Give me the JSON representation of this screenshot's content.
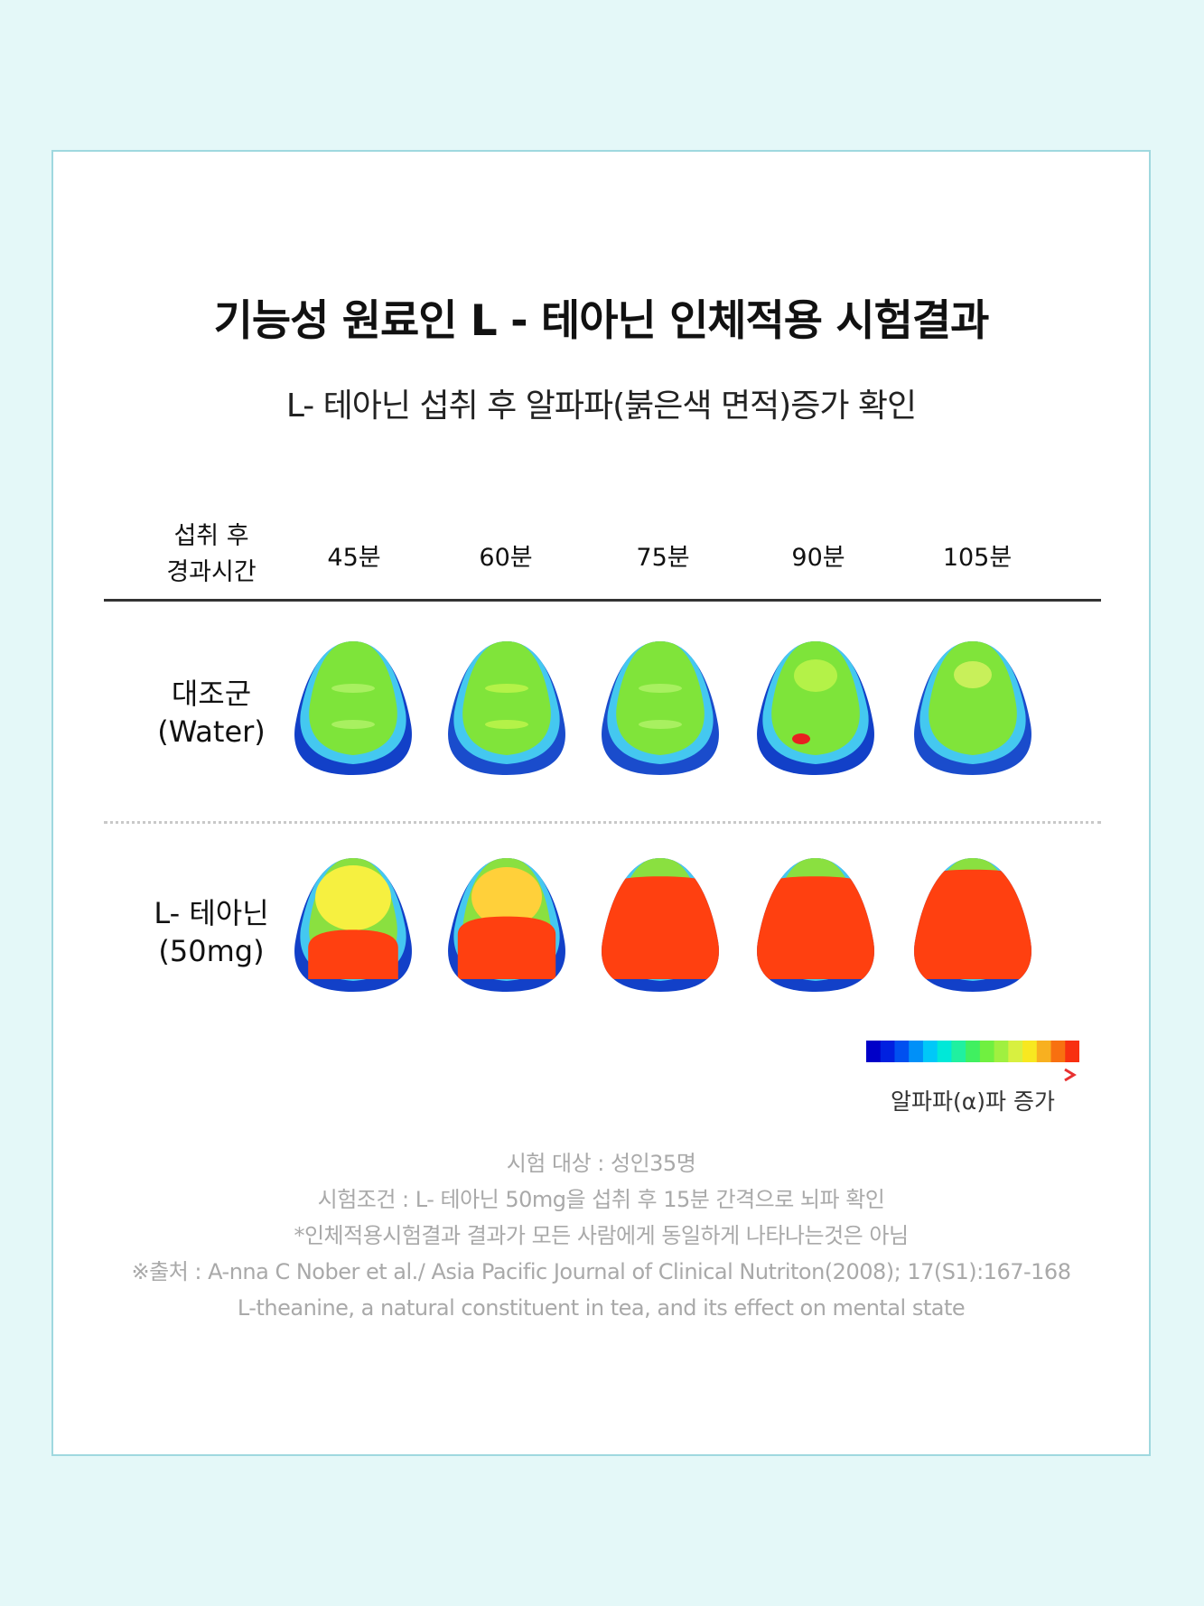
{
  "title": "기능성 원료인 L - 테아닌 인체적용 시험결과",
  "subtitle": "L- 테아닌 섭취 후 알파파(붉은색 면적)증가 확인",
  "header": {
    "label_line1": "섭취 후",
    "label_line2": "경과시간",
    "times": [
      "45분",
      "60분",
      "75분",
      "90분",
      "105분"
    ]
  },
  "rows": [
    {
      "label_line1": "대조군",
      "label_line2": "(Water)",
      "maps": [
        {
          "head": "#7ee43a",
          "inner": "#a8f060",
          "fringe": "#44c8f0",
          "edge": "#1240c8",
          "red": 0,
          "yellow": 0
        },
        {
          "head": "#80e43a",
          "inner": "#b4f248",
          "fringe": "#44c8f0",
          "edge": "#1a4ccc",
          "red": 0,
          "yellow": 0
        },
        {
          "head": "#80e43a",
          "inner": "#a8f060",
          "fringe": "#44c8f0",
          "edge": "#1a4ccc",
          "red": 0,
          "yellow": 0
        },
        {
          "head": "#7ee43a",
          "inner": "#b4f248",
          "fringe": "#44c8f0",
          "edge": "#1240c8",
          "red": 0.05,
          "yellow": 0.1
        },
        {
          "head": "#80e43a",
          "inner": "#c8f05a",
          "fringe": "#44c8f0",
          "edge": "#1a4ccc",
          "red": 0,
          "yellow": 0.05
        }
      ]
    },
    {
      "label_line1": "L- 테아닌",
      "label_line2": "(50mg)",
      "maps": [
        {
          "head": "#8ae040",
          "inner": "#f6f040",
          "fringe": "#44c8f0",
          "edge": "#1240c8",
          "red": 0.45,
          "yellow": 0.4
        },
        {
          "head": "#8ae040",
          "inner": "#ffd03a",
          "fringe": "#44c8f0",
          "edge": "#1240c8",
          "red": 0.55,
          "yellow": 0.35
        },
        {
          "head": "#8ae040",
          "inner": "#ffe040",
          "fringe": "#44c8f0",
          "edge": "#1240c8",
          "red": 0.85,
          "yellow": 0.05
        },
        {
          "head": "#8ae040",
          "inner": "#ffe040",
          "fringe": "#44c8f0",
          "edge": "#1240c8",
          "red": 0.85,
          "yellow": 0.05
        },
        {
          "head": "#8ae040",
          "inner": "#ffe040",
          "fringe": "#44c8f0",
          "edge": "#1240c8",
          "red": 0.9,
          "yellow": 0.05
        }
      ]
    }
  ],
  "legend": {
    "label": "알파파(α)파 증가",
    "colors": [
      "#0000c8",
      "#0020e0",
      "#0050f0",
      "#0090f8",
      "#00c8f8",
      "#00e8d8",
      "#20f0a0",
      "#40f060",
      "#70f040",
      "#a0f040",
      "#d8f040",
      "#f8e820",
      "#f8b020",
      "#f87010",
      "#f83010"
    ],
    "arrow_color": "#e83030"
  },
  "notes": [
    "시험 대상 : 성인35명",
    "시험조건 : L- 테아닌 50mg을 섭취 후 15분 간격으로 뇌파 확인",
    "*인체적용시험결과 결과가 모든 사람에게 동일하게 나타나는것은 아님",
    "※출처 : A-nna C Nober et al./ Asia Pacific Journal of Clinical Nutriton(2008); 17(S1):167-168",
    "L-theanine, a natural constituent in tea, and its effect on mental state"
  ]
}
